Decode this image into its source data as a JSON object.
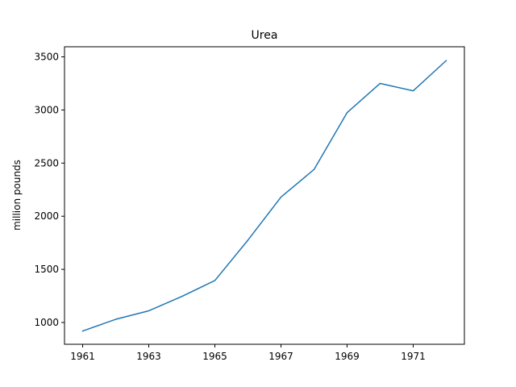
{
  "chart_data": {
    "type": "line",
    "title": "Urea",
    "xlabel": "",
    "ylabel": "million pounds",
    "xlim": [
      1960.45,
      1972.55
    ],
    "ylim": [
      795,
      3595
    ],
    "x_ticks": [
      1961,
      1963,
      1965,
      1967,
      1969,
      1971
    ],
    "y_ticks": [
      1000,
      1500,
      2000,
      2500,
      3000,
      3500
    ],
    "grid": false,
    "legend": "none",
    "series": [
      {
        "color": "#1f77b4",
        "x": [
          1961,
          1962,
          1963,
          1964,
          1965,
          1966,
          1967,
          1968,
          1969,
          1970,
          1971,
          1972
        ],
        "y": [
          920,
          1030,
          1110,
          1245,
          1395,
          1775,
          2180,
          2440,
          2975,
          3250,
          3180,
          3465
        ]
      }
    ]
  }
}
